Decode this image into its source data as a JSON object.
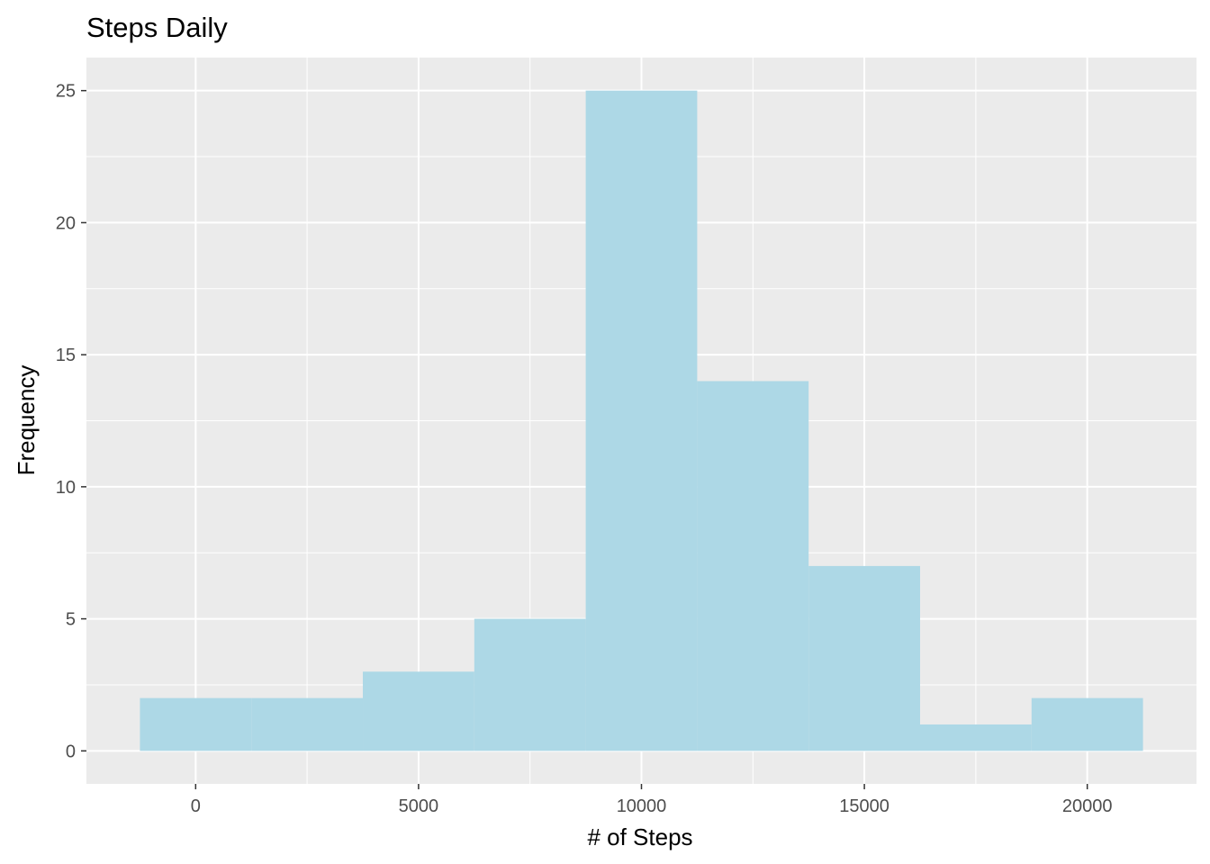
{
  "chart_data": {
    "type": "bar",
    "title": "Steps Daily",
    "xlabel": "# of Steps",
    "ylabel": "Frequency",
    "bins": [
      {
        "start": -1250,
        "end": 1250,
        "count": 2
      },
      {
        "start": 1250,
        "end": 3750,
        "count": 2
      },
      {
        "start": 3750,
        "end": 6250,
        "count": 3
      },
      {
        "start": 6250,
        "end": 8750,
        "count": 5
      },
      {
        "start": 8750,
        "end": 11250,
        "count": 25
      },
      {
        "start": 11250,
        "end": 13750,
        "count": 14
      },
      {
        "start": 13750,
        "end": 16250,
        "count": 7
      },
      {
        "start": 16250,
        "end": 18750,
        "count": 1
      },
      {
        "start": 18750,
        "end": 21250,
        "count": 2
      }
    ],
    "xlim": [
      -2450,
      22450
    ],
    "ylim": [
      -1.25,
      26.25
    ],
    "x_ticks": [
      0,
      5000,
      10000,
      15000,
      20000
    ],
    "x_tick_labels": [
      "0",
      "5000",
      "10000",
      "15000",
      "20000"
    ],
    "y_ticks": [
      0,
      5,
      10,
      15,
      20,
      25
    ],
    "y_tick_labels": [
      "0",
      "5",
      "10",
      "15",
      "20",
      "25"
    ],
    "grid": true,
    "legend": "none",
    "colors": {
      "panel": "#ebebeb",
      "grid": "#ffffff",
      "bar": "#add8e6",
      "tick_text": "#4d4d4d",
      "tick_mark": "#333333"
    }
  }
}
